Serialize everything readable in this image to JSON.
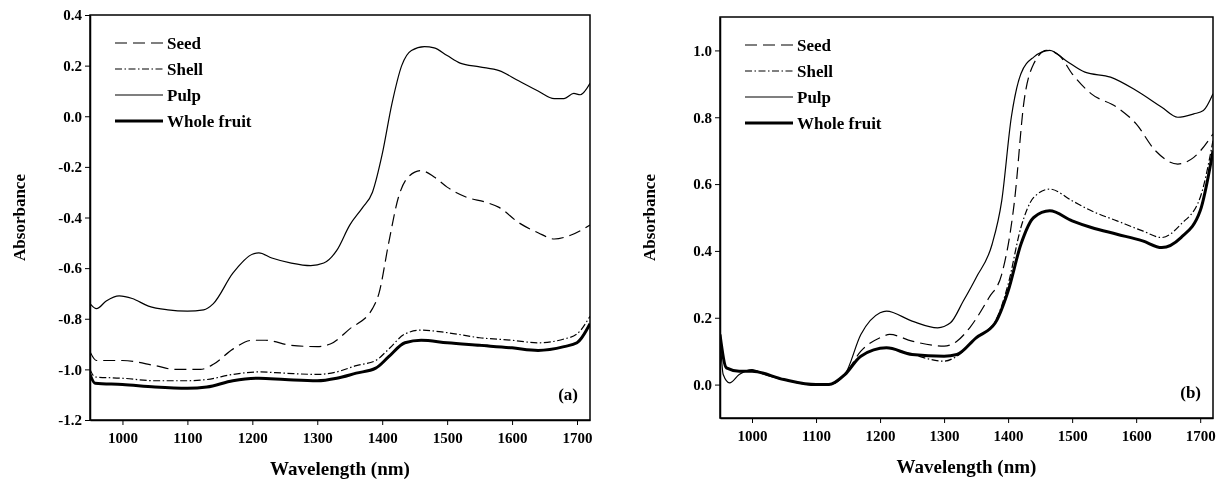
{
  "chart_data": [
    {
      "type": "line",
      "xlabel": "Wavelength (nm)",
      "ylabel": "Absorbance",
      "xlim": [
        950,
        1720
      ],
      "xticks": [
        1000,
        1100,
        1200,
        1300,
        1400,
        1500,
        1600,
        1700
      ],
      "ylim": [
        -1.2,
        0.4
      ],
      "yticks": [
        {
          "value": -1.2,
          "label": "-1.2"
        },
        {
          "value": -1.0,
          "label": "-1.0"
        },
        {
          "value": -0.8,
          "label": "-0.8"
        },
        {
          "value": -0.6,
          "label": "-0.6"
        },
        {
          "value": -0.4,
          "label": "-0.4"
        },
        {
          "value": -0.2,
          "label": "-0.2"
        },
        {
          "value": 0,
          "label": "0.0"
        },
        {
          "value": 0.2,
          "label": "0.2"
        },
        {
          "value": 0.4,
          "label": "0.4"
        }
      ],
      "legend": "top left",
      "grid": false,
      "annotations": [
        "(a)"
      ],
      "series": [
        {
          "name": "Seed",
          "color": "#000000",
          "line_style": "dashed",
          "x": [
            950,
            960,
            1000,
            1050,
            1080,
            1120,
            1140,
            1170,
            1200,
            1220,
            1260,
            1300,
            1320,
            1350,
            1385,
            1395,
            1410,
            1425,
            1440,
            1460,
            1480,
            1500,
            1530,
            1560,
            1580,
            1610,
            1640,
            1665,
            1690,
            1720
          ],
          "values": [
            -0.93,
            -0.965,
            -0.965,
            -0.985,
            -1.0,
            -1.0,
            -0.98,
            -0.92,
            -0.885,
            -0.885,
            -0.905,
            -0.91,
            -0.9,
            -0.84,
            -0.76,
            -0.7,
            -0.5,
            -0.32,
            -0.24,
            -0.215,
            -0.24,
            -0.28,
            -0.32,
            -0.34,
            -0.36,
            -0.42,
            -0.46,
            -0.485,
            -0.47,
            -0.43
          ]
        },
        {
          "name": "Shell",
          "color": "#000000",
          "line_style": "dotted",
          "x": [
            950,
            958,
            1000,
            1050,
            1100,
            1130,
            1170,
            1210,
            1250,
            1300,
            1330,
            1360,
            1390,
            1410,
            1435,
            1460,
            1500,
            1550,
            1600,
            1640,
            1680,
            1700,
            1720
          ],
          "values": [
            -1.0,
            -1.03,
            -1.035,
            -1.045,
            -1.045,
            -1.04,
            -1.02,
            -1.01,
            -1.015,
            -1.02,
            -1.01,
            -0.985,
            -0.965,
            -0.92,
            -0.86,
            -0.845,
            -0.855,
            -0.875,
            -0.885,
            -0.895,
            -0.88,
            -0.86,
            -0.79
          ]
        },
        {
          "name": "Pulp",
          "color": "#000000",
          "line_style": "solid",
          "x": [
            950,
            960,
            975,
            995,
            1015,
            1040,
            1070,
            1100,
            1125,
            1140,
            1170,
            1200,
            1210,
            1230,
            1260,
            1290,
            1310,
            1330,
            1350,
            1370,
            1385,
            1400,
            1415,
            1430,
            1445,
            1465,
            1480,
            1500,
            1520,
            1550,
            1580,
            1610,
            1640,
            1665,
            1680,
            1695,
            1705,
            1720
          ],
          "values": [
            -0.74,
            -0.76,
            -0.73,
            -0.71,
            -0.72,
            -0.75,
            -0.765,
            -0.77,
            -0.765,
            -0.74,
            -0.62,
            -0.545,
            -0.54,
            -0.56,
            -0.58,
            -0.59,
            -0.58,
            -0.53,
            -0.43,
            -0.36,
            -0.3,
            -0.15,
            0.05,
            0.2,
            0.26,
            0.275,
            0.27,
            0.24,
            0.21,
            0.195,
            0.18,
            0.14,
            0.1,
            0.07,
            0.07,
            0.09,
            0.085,
            0.13
          ]
        },
        {
          "name": "Whole fruit",
          "color": "#000000",
          "line_style": "solid",
          "x": [
            950,
            958,
            1000,
            1050,
            1100,
            1130,
            1170,
            1210,
            1250,
            1300,
            1330,
            1360,
            1390,
            1410,
            1435,
            1460,
            1500,
            1550,
            1600,
            1640,
            1680,
            1700,
            1720
          ],
          "values": [
            -1.02,
            -1.055,
            -1.06,
            -1.07,
            -1.075,
            -1.07,
            -1.045,
            -1.035,
            -1.04,
            -1.045,
            -1.035,
            -1.015,
            -0.995,
            -0.95,
            -0.895,
            -0.885,
            -0.895,
            -0.905,
            -0.915,
            -0.925,
            -0.91,
            -0.895,
            -0.82
          ]
        }
      ]
    },
    {
      "type": "line",
      "xlabel": "Wavelength (nm)",
      "ylabel": "Absorbance",
      "xlim": [
        950,
        1720
      ],
      "xticks": [
        1000,
        1100,
        1200,
        1300,
        1400,
        1500,
        1600,
        1700
      ],
      "ylim": [
        -0.1,
        1.1
      ],
      "yticks": [
        {
          "value": 0,
          "label": "0.0"
        },
        {
          "value": 0.2,
          "label": "0.2"
        },
        {
          "value": 0.4,
          "label": "0.4"
        },
        {
          "value": 0.6,
          "label": "0.6"
        },
        {
          "value": 0.8,
          "label": "0.8"
        },
        {
          "value": 1.0,
          "label": "1.0"
        }
      ],
      "legend": "top left",
      "grid": false,
      "annotations": [
        "(b)"
      ],
      "series": [
        {
          "name": "Seed",
          "color": "#000000",
          "line_style": "dashed",
          "x": [
            950,
            960,
            980,
            1000,
            1050,
            1100,
            1120,
            1145,
            1170,
            1200,
            1215,
            1250,
            1300,
            1320,
            1340,
            1370,
            1390,
            1410,
            1425,
            1440,
            1460,
            1480,
            1500,
            1530,
            1570,
            1600,
            1630,
            1665,
            1690,
            1720
          ],
          "values": [
            0.15,
            0.05,
            0.04,
            0.04,
            0.015,
            0.0,
            0.0,
            0.03,
            0.1,
            0.14,
            0.15,
            0.13,
            0.115,
            0.13,
            0.17,
            0.26,
            0.33,
            0.55,
            0.85,
            0.96,
            1.0,
            0.985,
            0.93,
            0.87,
            0.83,
            0.78,
            0.7,
            0.66,
            0.68,
            0.75
          ]
        },
        {
          "name": "Shell",
          "color": "#000000",
          "line_style": "dotted",
          "x": [
            950,
            960,
            980,
            1000,
            1050,
            1100,
            1120,
            1145,
            1170,
            1210,
            1250,
            1300,
            1320,
            1350,
            1380,
            1400,
            1420,
            1440,
            1465,
            1500,
            1530,
            1570,
            1610,
            1640,
            1670,
            1700,
            1720
          ],
          "values": [
            0.15,
            0.05,
            0.04,
            0.04,
            0.015,
            0.0,
            0.0,
            0.03,
            0.085,
            0.11,
            0.09,
            0.07,
            0.085,
            0.14,
            0.19,
            0.3,
            0.47,
            0.56,
            0.585,
            0.55,
            0.52,
            0.49,
            0.46,
            0.44,
            0.48,
            0.56,
            0.73
          ]
        },
        {
          "name": "Pulp",
          "color": "#000000",
          "line_style": "solid",
          "x": [
            950,
            955,
            965,
            980,
            1000,
            1020,
            1050,
            1090,
            1120,
            1145,
            1170,
            1200,
            1210,
            1250,
            1290,
            1310,
            1330,
            1350,
            1375,
            1390,
            1405,
            1420,
            1440,
            1465,
            1490,
            1520,
            1560,
            1600,
            1640,
            1665,
            1690,
            1705,
            1720
          ],
          "values": [
            0.15,
            0.03,
            0.005,
            0.03,
            0.045,
            0.03,
            0.015,
            0.0,
            0.0,
            0.03,
            0.15,
            0.215,
            0.22,
            0.19,
            0.17,
            0.185,
            0.25,
            0.32,
            0.42,
            0.55,
            0.8,
            0.93,
            0.98,
            1.0,
            0.97,
            0.935,
            0.92,
            0.88,
            0.83,
            0.8,
            0.81,
            0.82,
            0.87
          ]
        },
        {
          "name": "Whole fruit",
          "color": "#000000",
          "line_style": "solid",
          "x": [
            950,
            960,
            980,
            1000,
            1050,
            1100,
            1120,
            1145,
            1170,
            1210,
            1250,
            1300,
            1320,
            1350,
            1380,
            1400,
            1420,
            1440,
            1465,
            1500,
            1530,
            1570,
            1610,
            1640,
            1670,
            1700,
            1720
          ],
          "values": [
            0.15,
            0.05,
            0.04,
            0.04,
            0.015,
            0.0,
            0.0,
            0.03,
            0.085,
            0.11,
            0.09,
            0.085,
            0.09,
            0.14,
            0.185,
            0.28,
            0.42,
            0.5,
            0.52,
            0.49,
            0.47,
            0.45,
            0.43,
            0.41,
            0.44,
            0.52,
            0.7
          ]
        }
      ]
    }
  ]
}
